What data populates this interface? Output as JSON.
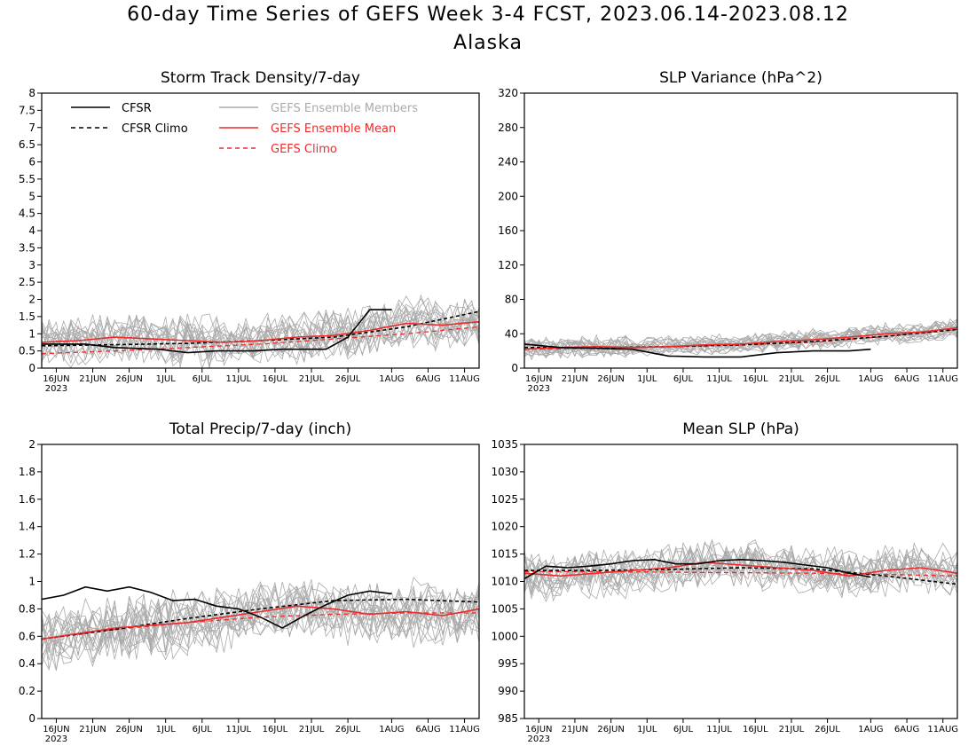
{
  "title": "60-day Time Series of GEFS Week 3-4 FCST, 2023.06.14-2023.08.12",
  "subtitle": "Alaska",
  "colors": {
    "cfsr": "#000000",
    "members": "#aaaaaa",
    "ens_mean": "#ee2a2a",
    "gefs_climo": "#ee2a2a"
  },
  "legend": [
    {
      "label": "CFSR",
      "style": "solid",
      "color": "#000000"
    },
    {
      "label": "CFSR Climo",
      "style": "dashed",
      "color": "#000000"
    },
    {
      "label": "GEFS Ensemble Members",
      "style": "solid",
      "color": "#aaaaaa"
    },
    {
      "label": "GEFS Ensemble Mean",
      "style": "solid",
      "color": "#ee2a2a"
    },
    {
      "label": "GEFS Climo",
      "style": "dashed",
      "color": "#ee2a2a"
    }
  ],
  "x_axis": {
    "tick_labels": [
      "16JUN",
      "21JUN",
      "26JUN",
      "1JUL",
      "6JUL",
      "11JUL",
      "16JUL",
      "21JUL",
      "26JUL",
      "1AUG",
      "6AUG",
      "11AUG"
    ],
    "year_label": "2023"
  },
  "chart_data": [
    {
      "type": "line",
      "title": "Storm Track Density/7-day",
      "ylim": [
        0,
        8
      ],
      "yticks": [
        "0",
        "0.5",
        "1",
        "1.5",
        "2",
        "2.5",
        "3",
        "3.5",
        "4",
        "4.5",
        "5",
        "5.5",
        "6",
        "6.5",
        "7",
        "7.5",
        "8"
      ],
      "legend": "top-left",
      "series": [
        {
          "name": "CFSR",
          "x": [
            0,
            6,
            10,
            16,
            20,
            24,
            29,
            33,
            39,
            42,
            45,
            48
          ],
          "values": [
            0.7,
            0.7,
            0.6,
            0.55,
            0.45,
            0.5,
            0.5,
            0.55,
            0.55,
            0.9,
            1.7,
            1.7
          ]
        },
        {
          "name": "CFSR Climo",
          "x": [
            0,
            10,
            20,
            30,
            40,
            50,
            60
          ],
          "values": [
            0.65,
            0.68,
            0.72,
            0.8,
            0.9,
            1.2,
            1.65
          ]
        },
        {
          "name": "GEFS Ensemble Mean",
          "x": [
            0,
            5,
            10,
            15,
            20,
            25,
            30,
            35,
            40,
            45,
            50,
            55,
            60
          ],
          "values": [
            0.75,
            0.8,
            0.9,
            0.85,
            0.8,
            0.75,
            0.8,
            0.9,
            0.95,
            1.1,
            1.3,
            1.25,
            1.35
          ]
        },
        {
          "name": "GEFS Climo",
          "x": [
            0,
            10,
            20,
            30,
            40,
            50,
            60
          ],
          "values": [
            0.42,
            0.5,
            0.6,
            0.7,
            0.85,
            1.0,
            1.2
          ]
        }
      ]
    },
    {
      "type": "line",
      "title": "SLP Variance (hPa^2)",
      "ylim": [
        0,
        320
      ],
      "yticks": [
        "0",
        "40",
        "80",
        "120",
        "160",
        "200",
        "240",
        "280",
        "320"
      ],
      "series": [
        {
          "name": "CFSR",
          "x": [
            0,
            5,
            10,
            15,
            20,
            25,
            30,
            35,
            40,
            45,
            48
          ],
          "values": [
            28,
            24,
            23,
            22,
            14,
            13,
            13,
            18,
            20,
            20,
            22
          ]
        },
        {
          "name": "CFSR Climo",
          "x": [
            0,
            10,
            20,
            30,
            40,
            50,
            60
          ],
          "values": [
            24,
            24,
            25,
            27,
            31,
            37,
            45
          ]
        },
        {
          "name": "GEFS Ensemble Mean",
          "x": [
            0,
            5,
            10,
            15,
            20,
            25,
            30,
            35,
            40,
            45,
            50,
            55,
            60
          ],
          "values": [
            22,
            24,
            25,
            24,
            25,
            27,
            28,
            31,
            33,
            36,
            40,
            42,
            47
          ]
        },
        {
          "name": "GEFS Climo",
          "x": [
            0,
            10,
            20,
            30,
            40,
            50,
            60
          ],
          "values": [
            22,
            23,
            25,
            27,
            30,
            37,
            45
          ]
        }
      ]
    },
    {
      "type": "line",
      "title": "Total Precip/7-day (inch)",
      "ylim": [
        0,
        2
      ],
      "yticks": [
        "0",
        "0.2",
        "0.4",
        "0.6",
        "0.8",
        "1",
        "1.2",
        "1.4",
        "1.6",
        "1.8",
        "2"
      ],
      "series": [
        {
          "name": "CFSR",
          "x": [
            0,
            3,
            6,
            9,
            12,
            15,
            18,
            21,
            24,
            27,
            30,
            33,
            36,
            39,
            42,
            45,
            48
          ],
          "values": [
            0.87,
            0.9,
            0.96,
            0.93,
            0.96,
            0.92,
            0.86,
            0.87,
            0.82,
            0.8,
            0.74,
            0.66,
            0.75,
            0.83,
            0.9,
            0.93,
            0.91
          ]
        },
        {
          "name": "CFSR Climo",
          "x": [
            0,
            10,
            20,
            30,
            40,
            50,
            60
          ],
          "values": [
            0.58,
            0.65,
            0.73,
            0.8,
            0.86,
            0.87,
            0.85
          ]
        },
        {
          "name": "GEFS Ensemble Mean",
          "x": [
            0,
            5,
            10,
            15,
            20,
            25,
            30,
            35,
            40,
            45,
            50,
            55,
            60
          ],
          "values": [
            0.58,
            0.62,
            0.66,
            0.68,
            0.7,
            0.74,
            0.78,
            0.82,
            0.8,
            0.76,
            0.78,
            0.75,
            0.8
          ]
        },
        {
          "name": "GEFS Climo",
          "x": [
            0,
            10,
            20,
            30,
            40,
            50,
            60
          ],
          "values": [
            0.58,
            0.65,
            0.7,
            0.74,
            0.76,
            0.77,
            0.77
          ]
        }
      ]
    },
    {
      "type": "line",
      "title": "Mean SLP (hPa)",
      "ylim": [
        985,
        1035
      ],
      "yticks": [
        "985",
        "990",
        "995",
        "1000",
        "1005",
        "1010",
        "1015",
        "1020",
        "1025",
        "1030",
        "1035"
      ],
      "series": [
        {
          "name": "CFSR",
          "x": [
            0,
            3,
            6,
            9,
            12,
            15,
            18,
            21,
            24,
            27,
            30,
            33,
            36,
            39,
            42,
            45,
            48
          ],
          "values": [
            1010.5,
            1012.8,
            1012.5,
            1012.8,
            1013.2,
            1013.8,
            1014.0,
            1013.2,
            1013.2,
            1013.8,
            1014.0,
            1013.8,
            1013.5,
            1013.0,
            1012.5,
            1011.5,
            1010.8
          ]
        },
        {
          "name": "CFSR Climo",
          "x": [
            0,
            10,
            20,
            30,
            40,
            50,
            60
          ],
          "values": [
            1012.0,
            1012.0,
            1012.2,
            1012.5,
            1012.3,
            1011.0,
            1009.5
          ]
        },
        {
          "name": "GEFS Ensemble Mean",
          "x": [
            0,
            5,
            10,
            15,
            20,
            25,
            30,
            35,
            40,
            45,
            50,
            55,
            60
          ],
          "values": [
            1011.5,
            1011.0,
            1011.5,
            1012.0,
            1012.5,
            1013.5,
            1013.0,
            1012.5,
            1012.0,
            1011.0,
            1012.0,
            1012.5,
            1011.5
          ]
        },
        {
          "name": "GEFS Climo",
          "x": [
            0,
            10,
            20,
            30,
            40,
            50,
            60
          ],
          "values": [
            1011.8,
            1011.8,
            1011.7,
            1011.6,
            1011.5,
            1011.3,
            1011.0
          ]
        }
      ]
    }
  ]
}
